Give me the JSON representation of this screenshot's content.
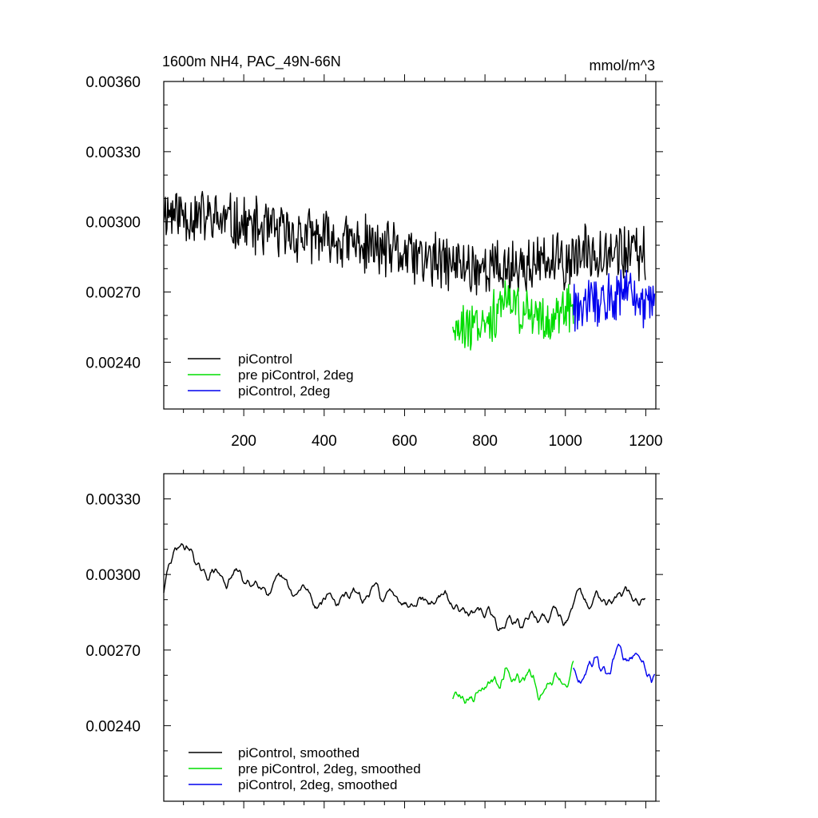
{
  "chart_data": [
    {
      "type": "line",
      "title_left": "1600m NH4, PAC_49N-66N",
      "title_right": "mmol/m^3",
      "xlim": [
        1,
        1225
      ],
      "ylim": [
        0.0022,
        0.0036
      ],
      "x_ticks": [
        200,
        400,
        600,
        800,
        1000,
        1200
      ],
      "x_tick_labels": [
        "200",
        "400",
        "600",
        "800",
        "1000",
        "1200"
      ],
      "y_ticks": [
        0.0024,
        0.0027,
        0.003,
        0.0033,
        0.0036
      ],
      "y_tick_labels": [
        "0.00240",
        "0.00270",
        "0.00300",
        "0.00330",
        "0.00360"
      ],
      "legend": "bottom-left",
      "grid": false,
      "series": [
        {
          "name": "piControl",
          "color": "#000000",
          "x_range": [
            1,
            1200
          ],
          "trend": [
            [
              1,
              0.00305
            ],
            [
              100,
              0.00302
            ],
            [
              300,
              0.00295
            ],
            [
              500,
              0.0029
            ],
            [
              700,
              0.00282
            ],
            [
              850,
              0.0028
            ],
            [
              1000,
              0.00283
            ],
            [
              1100,
              0.00289
            ],
            [
              1200,
              0.00285
            ]
          ],
          "amplitude": 0.00014
        },
        {
          "name": "pre piControl, 2deg",
          "color": "#00dd00",
          "x_range": [
            720,
            1020
          ],
          "trend": [
            [
              720,
              0.00255
            ],
            [
              800,
              0.00258
            ],
            [
              850,
              0.00265
            ],
            [
              900,
              0.00262
            ],
            [
              950,
              0.00258
            ],
            [
              1020,
              0.00262
            ]
          ],
          "amplitude": 0.00012
        },
        {
          "name": "piControl, 2deg",
          "color": "#0000ee",
          "x_range": [
            1020,
            1222
          ],
          "trend": [
            [
              1020,
              0.00262
            ],
            [
              1100,
              0.00266
            ],
            [
              1150,
              0.0027
            ],
            [
              1222,
              0.00262
            ]
          ],
          "amplitude": 0.00013
        }
      ]
    },
    {
      "type": "line",
      "xlim": [
        1,
        1225
      ],
      "ylim": [
        0.0021,
        0.0034
      ],
      "x_ticks": [
        200,
        400,
        600,
        800,
        1000,
        1200
      ],
      "y_ticks": [
        0.0024,
        0.0027,
        0.003,
        0.0033
      ],
      "y_tick_labels": [
        "0.00240",
        "0.00270",
        "0.00300",
        "0.00330"
      ],
      "legend": "bottom-left",
      "grid": false,
      "series": [
        {
          "name": "piControl, smoothed",
          "color": "#000000",
          "x_range": [
            1,
            1200
          ],
          "trend": [
            [
              1,
              0.00293
            ],
            [
              40,
              0.00315
            ],
            [
              100,
              0.003
            ],
            [
              200,
              0.00298
            ],
            [
              400,
              0.0029
            ],
            [
              550,
              0.00292
            ],
            [
              700,
              0.0029
            ],
            [
              850,
              0.0028
            ],
            [
              1000,
              0.00285
            ],
            [
              1100,
              0.00292
            ],
            [
              1200,
              0.0029
            ]
          ],
          "amplitude": 4e-05
        },
        {
          "name": "pre piControl, 2deg, smoothed",
          "color": "#00dd00",
          "x_range": [
            720,
            1020
          ],
          "trend": [
            [
              720,
              0.00252
            ],
            [
              800,
              0.00255
            ],
            [
              850,
              0.00263
            ],
            [
              900,
              0.00258
            ],
            [
              950,
              0.00255
            ],
            [
              1020,
              0.00263
            ]
          ],
          "amplitude": 5e-05
        },
        {
          "name": "piControl, 2deg, smoothed",
          "color": "#0000ee",
          "x_range": [
            1020,
            1222
          ],
          "trend": [
            [
              1020,
              0.00262
            ],
            [
              1100,
              0.00262
            ],
            [
              1150,
              0.00268
            ],
            [
              1222,
              0.00262
            ]
          ],
          "amplitude": 5e-05
        }
      ]
    }
  ]
}
